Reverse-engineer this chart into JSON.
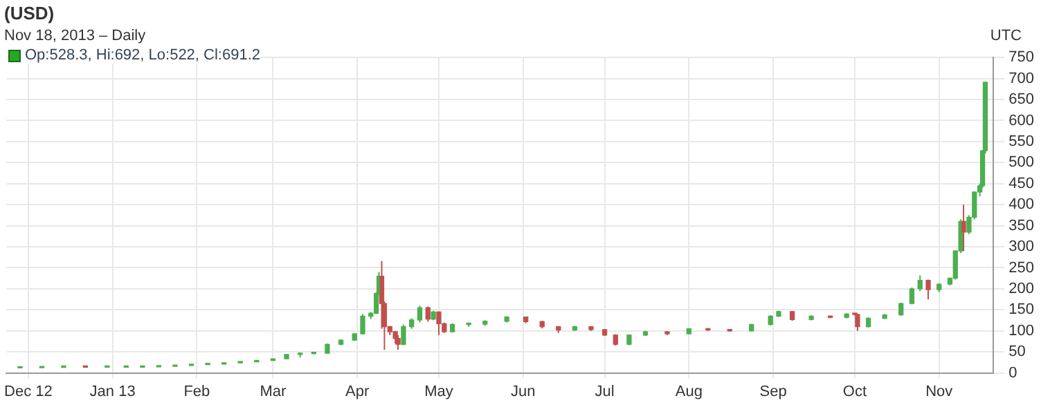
{
  "chart_data": {
    "type": "candlestick",
    "title": "(USD)",
    "subtitle": "Nov 18, 2013 – Daily",
    "annotations": [
      "UTC",
      "Op:528.3, Hi:692, Lo:522, Cl:691.2"
    ],
    "x": [
      "2012-11-28",
      "2012-12-06",
      "2012-12-14",
      "2012-12-22",
      "2012-12-30",
      "2013-01-06",
      "2013-01-12",
      "2013-01-18",
      "2013-01-24",
      "2013-01-30",
      "2013-02-05",
      "2013-02-11",
      "2013-02-17",
      "2013-02-23",
      "2013-03-01",
      "2013-03-06",
      "2013-03-11",
      "2013-03-16",
      "2013-03-21",
      "2013-03-26",
      "2013-03-31",
      "2013-04-03",
      "2013-04-06",
      "2013-04-08",
      "2013-04-09",
      "2013-04-10",
      "2013-04-11",
      "2013-04-13",
      "2013-04-15",
      "2013-04-16",
      "2013-04-18",
      "2013-04-21",
      "2013-04-24",
      "2013-04-27",
      "2013-04-29",
      "2013-05-01",
      "2013-05-03",
      "2013-05-06",
      "2013-05-12",
      "2013-05-18",
      "2013-05-26",
      "2013-06-02",
      "2013-06-08",
      "2013-06-14",
      "2013-06-20",
      "2013-06-26",
      "2013-07-01",
      "2013-07-05",
      "2013-07-10",
      "2013-07-16",
      "2013-07-24",
      "2013-08-01",
      "2013-08-08",
      "2013-08-16",
      "2013-08-24",
      "2013-08-31",
      "2013-09-03",
      "2013-09-08",
      "2013-09-15",
      "2013-09-22",
      "2013-09-28",
      "2013-10-01",
      "2013-10-02",
      "2013-10-06",
      "2013-10-12",
      "2013-10-18",
      "2013-10-22",
      "2013-10-25",
      "2013-10-28",
      "2013-11-01",
      "2013-11-05",
      "2013-11-07",
      "2013-11-09",
      "2013-11-10",
      "2013-11-12",
      "2013-11-14",
      "2013-11-16",
      "2013-11-17",
      "2013-11-18"
    ],
    "ohlc": [
      [
        12,
        12.5,
        12,
        12.4
      ],
      [
        12.4,
        13.4,
        12.3,
        13.3
      ],
      [
        13.3,
        13.7,
        13.2,
        13.5
      ],
      [
        13.5,
        13.6,
        13.2,
        13.4
      ],
      [
        13.4,
        13.6,
        13.2,
        13.4
      ],
      [
        13.4,
        13.8,
        13.3,
        13.6
      ],
      [
        13.6,
        14.4,
        13.5,
        14.2
      ],
      [
        14.2,
        16,
        14,
        15.7
      ],
      [
        15.7,
        18,
        15.5,
        17.5
      ],
      [
        17.5,
        20,
        17,
        19.6
      ],
      [
        19.6,
        21.5,
        19,
        21
      ],
      [
        21,
        24.5,
        20.5,
        24
      ],
      [
        24,
        27,
        23.5,
        26.5
      ],
      [
        26.5,
        30,
        26,
        29.8
      ],
      [
        29.8,
        34,
        29,
        33.5
      ],
      [
        33.5,
        45,
        33,
        44
      ],
      [
        44,
        48,
        37,
        46
      ],
      [
        46,
        48,
        44,
        47
      ],
      [
        47,
        70,
        46,
        68
      ],
      [
        68,
        80,
        66,
        78
      ],
      [
        78,
        95,
        76,
        93
      ],
      [
        93,
        140,
        92,
        135
      ],
      [
        135,
        145,
        128,
        142
      ],
      [
        142,
        192,
        140,
        189
      ],
      [
        189,
        240,
        185,
        230
      ],
      [
        230,
        266,
        105,
        165
      ],
      [
        165,
        170,
        55,
        110
      ],
      [
        110,
        112,
        90,
        98
      ],
      [
        98,
        100,
        70,
        82
      ],
      [
        82,
        90,
        55,
        68
      ],
      [
        68,
        115,
        66,
        110
      ],
      [
        110,
        130,
        105,
        126
      ],
      [
        126,
        160,
        120,
        155
      ],
      [
        155,
        158,
        122,
        128
      ],
      [
        128,
        148,
        125,
        145
      ],
      [
        145,
        146,
        90,
        117
      ],
      [
        117,
        120,
        95,
        98
      ],
      [
        98,
        118,
        96,
        115
      ],
      [
        115,
        120,
        110,
        116
      ],
      [
        116,
        125,
        112,
        123
      ],
      [
        123,
        135,
        120,
        133
      ],
      [
        133,
        134,
        118,
        122
      ],
      [
        122,
        124,
        106,
        110
      ],
      [
        110,
        111,
        95,
        102
      ],
      [
        102,
        112,
        100,
        110
      ],
      [
        110,
        111,
        100,
        103
      ],
      [
        103,
        104,
        88,
        90
      ],
      [
        90,
        92,
        65,
        68
      ],
      [
        68,
        92,
        66,
        90
      ],
      [
        90,
        100,
        88,
        98
      ],
      [
        98,
        99,
        90,
        93
      ],
      [
        93,
        106,
        92,
        105
      ],
      [
        105,
        107,
        100,
        102
      ],
      [
        102,
        104,
        98,
        100
      ],
      [
        100,
        117,
        99,
        115
      ],
      [
        115,
        137,
        113,
        135
      ],
      [
        135,
        148,
        133,
        146
      ],
      [
        146,
        147,
        124,
        127
      ],
      [
        127,
        137,
        125,
        135
      ],
      [
        135,
        136,
        130,
        132
      ],
      [
        132,
        142,
        130,
        140
      ],
      [
        140,
        142,
        137,
        139
      ],
      [
        139,
        140,
        100,
        110
      ],
      [
        110,
        132,
        108,
        130
      ],
      [
        130,
        140,
        128,
        138
      ],
      [
        138,
        167,
        136,
        165
      ],
      [
        165,
        203,
        163,
        200
      ],
      [
        200,
        232,
        195,
        220
      ],
      [
        220,
        222,
        175,
        198
      ],
      [
        198,
        213,
        192,
        211
      ],
      [
        211,
        227,
        208,
        225
      ],
      [
        225,
        292,
        222,
        290
      ],
      [
        290,
        365,
        285,
        360
      ],
      [
        360,
        400,
        290,
        335
      ],
      [
        335,
        375,
        330,
        370
      ],
      [
        370,
        432,
        365,
        430
      ],
      [
        430,
        450,
        420,
        445
      ],
      [
        445,
        530,
        440,
        528.3
      ],
      [
        528.3,
        692,
        522,
        691.2
      ]
    ],
    "xlim": [
      "2012-11-23",
      "2013-11-21"
    ],
    "xticks": [
      {
        "value": "2012-12-01",
        "label": "Dec 12"
      },
      {
        "value": "2013-01-01",
        "label": "Jan 13"
      },
      {
        "value": "2013-02-01",
        "label": "Feb"
      },
      {
        "value": "2013-03-01",
        "label": "Mar"
      },
      {
        "value": "2013-04-01",
        "label": "Apr"
      },
      {
        "value": "2013-05-01",
        "label": "May"
      },
      {
        "value": "2013-06-01",
        "label": "Jun"
      },
      {
        "value": "2013-07-01",
        "label": "Jul"
      },
      {
        "value": "2013-08-01",
        "label": "Aug"
      },
      {
        "value": "2013-09-01",
        "label": "Sep"
      },
      {
        "value": "2013-10-01",
        "label": "Oct"
      },
      {
        "value": "2013-11-01",
        "label": "Nov"
      }
    ],
    "ylim": [
      0,
      750
    ],
    "yticks": [
      0,
      50,
      100,
      150,
      200,
      250,
      300,
      350,
      400,
      450,
      500,
      550,
      600,
      650,
      700,
      750
    ],
    "grid": true,
    "legend": false
  }
}
